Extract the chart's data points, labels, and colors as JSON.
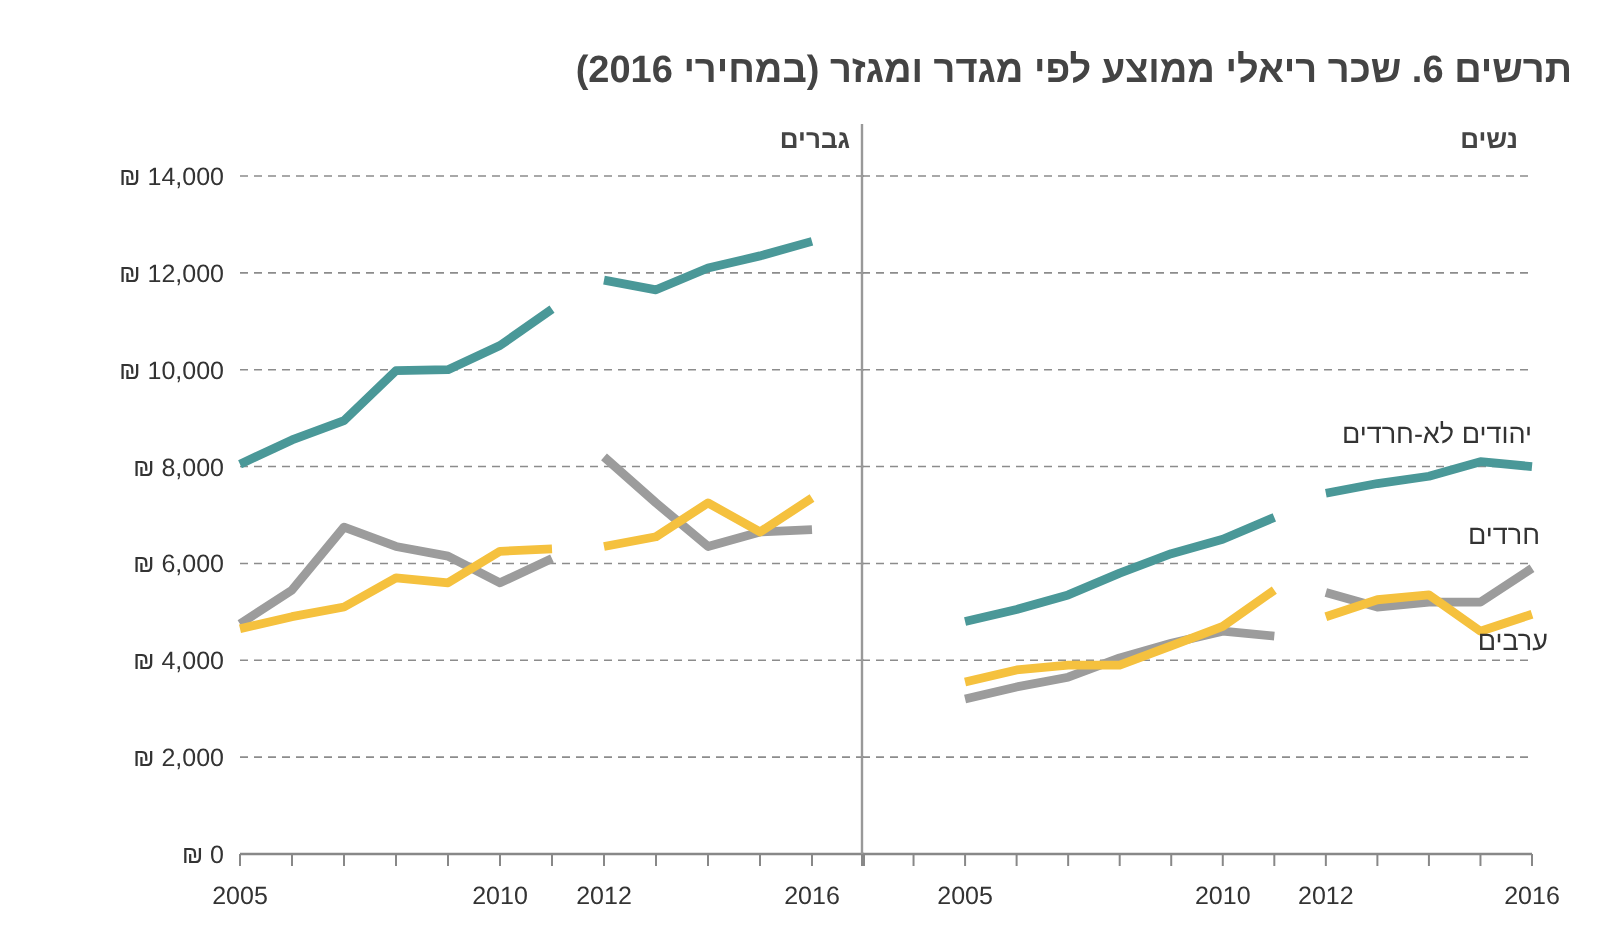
{
  "chart_data": [
    {
      "type": "line",
      "title": "תרשים 6. שכר ריאלי ממוצע לפי מגדר ומגזר (במחירי 2016)",
      "subtitle": "גברים",
      "xlim": [
        2005,
        2017
      ],
      "ylim": [
        0,
        14000
      ],
      "xticks": [
        2005,
        {
          "value": 2006,
          "label": null
        },
        {
          "value": 2007,
          "label": null
        },
        {
          "value": 2008,
          "label": null
        },
        {
          "value": 2009,
          "label": null
        },
        2010,
        {
          "value": 2011,
          "label": null
        },
        2012,
        {
          "value": 2013,
          "label": null
        },
        {
          "value": 2014,
          "label": null
        },
        {
          "value": 2015,
          "label": null
        },
        2016,
        {
          "value": 2017,
          "label": null
        }
      ],
      "yticks": [
        {
          "value": 0,
          "label": "₪ 0"
        },
        {
          "value": 2000,
          "label": "₪ 2,000"
        },
        {
          "value": 4000,
          "label": "₪ 4,000"
        },
        {
          "value": 6000,
          "label": "₪ 6,000"
        },
        {
          "value": 8000,
          "label": "₪ 8,000"
        },
        {
          "value": 10000,
          "label": "₪ 10,000"
        },
        {
          "value": 12000,
          "label": "₪ 12,000"
        },
        {
          "value": 14000,
          "label": "₪ 14,000"
        }
      ],
      "grid": "y",
      "legend": false,
      "series": [
        {
          "color": "#4a9898",
          "x": [
            2005,
            2006,
            2007,
            2008,
            2009,
            2010,
            2011
          ],
          "values": [
            8050,
            8550,
            8950,
            9980,
            10000,
            10500,
            11250
          ]
        },
        {
          "color": "#4a9898",
          "x": [
            2012,
            2013,
            2014,
            2015,
            2016
          ],
          "values": [
            11850,
            11650,
            12100,
            12350,
            12650
          ]
        },
        {
          "color": "#9c9c9c",
          "x": [
            2005,
            2006,
            2007,
            2008,
            2009,
            2010,
            2011
          ],
          "values": [
            4750,
            5450,
            6750,
            6350,
            6150,
            5600,
            6100
          ]
        },
        {
          "color": "#9c9c9c",
          "x": [
            2012,
            2013,
            2014,
            2015,
            2016
          ],
          "values": [
            8200,
            7250,
            6350,
            6650,
            6700
          ]
        },
        {
          "color": "#f5c13e",
          "x": [
            2005,
            2006,
            2007,
            2008,
            2009,
            2010,
            2011
          ],
          "values": [
            4650,
            4900,
            5100,
            5700,
            5600,
            6250,
            6300
          ]
        },
        {
          "color": "#f5c13e",
          "x": [
            2012,
            2013,
            2014,
            2015,
            2016
          ],
          "values": [
            6350,
            6550,
            7250,
            6650,
            7350
          ]
        }
      ]
    },
    {
      "type": "line",
      "subtitle": "נשים",
      "xlim": [
        2003,
        2016
      ],
      "ylim": [
        0,
        14000
      ],
      "xticks": [
        {
          "value": 2003,
          "label": null
        },
        {
          "value": 2004,
          "label": null
        },
        2005,
        {
          "value": 2006,
          "label": null
        },
        {
          "value": 2007,
          "label": null
        },
        {
          "value": 2008,
          "label": null
        },
        {
          "value": 2009,
          "label": null
        },
        2010,
        {
          "value": 2011,
          "label": null
        },
        2012,
        {
          "value": 2013,
          "label": null
        },
        {
          "value": 2014,
          "label": null
        },
        {
          "value": 2015,
          "label": null
        },
        2016
      ],
      "yticks": [
        0,
        2000,
        4000,
        6000,
        8000,
        10000,
        12000,
        14000
      ],
      "tick_labels": "x",
      "grid": "y",
      "legend": false,
      "series": [
        {
          "color": "#4a9898",
          "x": [
            2005,
            2006,
            2007,
            2008,
            2009,
            2010,
            2011
          ],
          "values": [
            4800,
            5050,
            5350,
            5800,
            6200,
            6500,
            6950
          ]
        },
        {
          "name": "יהודים לא-חרדים",
          "color": "#4a9898",
          "x": [
            2012,
            2013,
            2014,
            2015,
            2016
          ],
          "values": [
            7450,
            7650,
            7800,
            8100,
            8000
          ]
        },
        {
          "color": "#9c9c9c",
          "x": [
            2005,
            2006,
            2007,
            2008,
            2009,
            2010,
            2011
          ],
          "values": [
            3200,
            3450,
            3650,
            4050,
            4350,
            4600,
            4500
          ]
        },
        {
          "name": "חרדים",
          "color": "#9c9c9c",
          "x": [
            2012,
            2013,
            2014,
            2015,
            2016
          ],
          "values": [
            5400,
            5100,
            5200,
            5200,
            5900
          ]
        },
        {
          "color": "#f5c13e",
          "x": [
            2005,
            2006,
            2007,
            2008,
            2009,
            2010,
            2011
          ],
          "values": [
            3550,
            3800,
            3900,
            3900,
            4300,
            4700,
            5450
          ]
        },
        {
          "name": "ערבים",
          "color": "#f5c13e",
          "x": [
            2012,
            2013,
            2014,
            2015,
            2016
          ],
          "values": [
            4900,
            5250,
            5350,
            4600,
            4950
          ]
        }
      ]
    }
  ]
}
